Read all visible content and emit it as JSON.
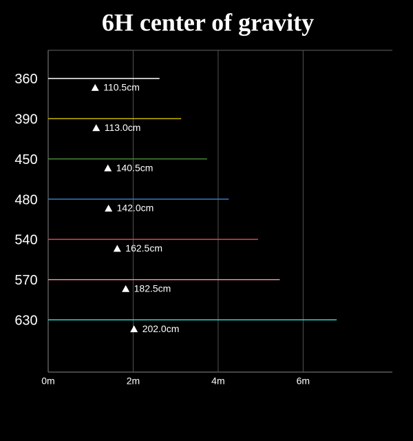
{
  "chart_data": {
    "type": "bar",
    "orientation": "horizontal",
    "title": "6H center of gravity",
    "categories": [
      "360",
      "390",
      "450",
      "480",
      "540",
      "570",
      "630"
    ],
    "values": [
      2.62,
      3.13,
      3.74,
      4.25,
      4.94,
      5.45,
      6.79
    ],
    "colors": [
      "#ffffff",
      "#c8b400",
      "#4a8a3a",
      "#2f80c8",
      "#e04848",
      "#f08a8a",
      "#30d6c8"
    ],
    "markers": {
      "values": [
        1.105,
        1.13,
        1.405,
        1.42,
        1.625,
        1.825,
        2.02
      ],
      "value_labels": [
        "110.5cm",
        "113.0cm",
        "140.5cm",
        "142.0cm",
        "162.5cm",
        "182.5cm",
        "202.0cm"
      ]
    },
    "xlim": [
      0,
      8.1
    ],
    "xticks": [
      {
        "value": 0,
        "label": "0m"
      },
      {
        "value": 2,
        "label": "2m"
      },
      {
        "value": 4,
        "label": "4m"
      },
      {
        "value": 6,
        "label": "6m"
      }
    ],
    "grid": true
  }
}
